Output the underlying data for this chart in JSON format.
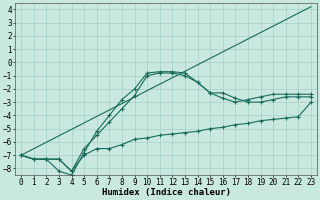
{
  "title": "",
  "xlabel": "Humidex (Indice chaleur)",
  "xlim": [
    -0.5,
    23.5
  ],
  "ylim": [
    -8.5,
    4.5
  ],
  "xticks": [
    0,
    1,
    2,
    3,
    4,
    5,
    6,
    7,
    8,
    9,
    10,
    11,
    12,
    13,
    14,
    15,
    16,
    17,
    18,
    19,
    20,
    21,
    22,
    23
  ],
  "yticks": [
    4,
    3,
    2,
    1,
    0,
    -1,
    -2,
    -3,
    -4,
    -5,
    -6,
    -7,
    -8
  ],
  "bg_color": "#c8e8e0",
  "grid_color": "#a0c8c0",
  "line_color": "#1a6b5a",
  "line1_x": [
    0,
    1,
    2,
    3,
    4,
    5,
    6,
    7,
    8,
    9,
    10,
    11,
    12,
    13,
    14,
    15,
    16,
    17,
    18,
    19,
    20,
    21,
    22,
    23
  ],
  "line1_y": [
    -7.0,
    -7.3,
    -7.3,
    -7.3,
    -8.2,
    -7.0,
    -6.5,
    -6.5,
    -6.2,
    -5.8,
    -5.7,
    -5.5,
    -5.4,
    -5.3,
    -5.2,
    -5.0,
    -4.9,
    -4.7,
    -4.6,
    -4.4,
    -4.3,
    -4.2,
    -4.1,
    -3.0
  ],
  "line2_x": [
    0,
    1,
    2,
    3,
    4,
    5,
    6,
    7,
    8,
    9,
    10,
    11,
    12,
    13,
    14,
    15,
    16,
    17,
    18,
    19,
    20,
    21,
    22,
    23
  ],
  "line2_y": [
    -7.0,
    -7.3,
    -7.3,
    -7.3,
    -8.2,
    -6.5,
    -5.5,
    -4.5,
    -3.5,
    -2.5,
    -1.0,
    -0.8,
    -0.8,
    -1.0,
    -1.5,
    -2.3,
    -2.3,
    -2.7,
    -3.0,
    -3.0,
    -2.8,
    -2.6,
    -2.6,
    -2.6
  ],
  "line3_x": [
    0,
    1,
    2,
    3,
    4,
    5,
    6,
    7,
    8,
    9,
    10,
    11,
    12,
    13,
    14,
    15,
    16,
    17,
    18,
    19,
    20,
    21,
    22,
    23
  ],
  "line3_y": [
    -7.0,
    -7.3,
    -7.3,
    -8.2,
    -8.5,
    -6.8,
    -5.2,
    -4.0,
    -2.8,
    -2.0,
    -0.8,
    -0.7,
    -0.7,
    -0.8,
    -1.5,
    -2.3,
    -2.7,
    -3.0,
    -2.8,
    -2.6,
    -2.4,
    -2.4,
    -2.4,
    -2.4
  ],
  "line4_x": [
    0,
    23
  ],
  "line4_y": [
    -7.0,
    4.2
  ],
  "tick_fontsize": 5.5,
  "label_fontsize": 6.5
}
